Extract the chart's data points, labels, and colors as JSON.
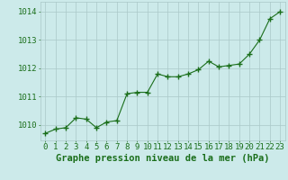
{
  "x": [
    0,
    1,
    2,
    3,
    4,
    5,
    6,
    7,
    8,
    9,
    10,
    11,
    12,
    13,
    14,
    15,
    16,
    17,
    18,
    19,
    20,
    21,
    22,
    23
  ],
  "y": [
    1009.7,
    1009.85,
    1009.9,
    1010.25,
    1010.2,
    1009.9,
    1010.1,
    1010.15,
    1011.1,
    1011.15,
    1011.15,
    1011.8,
    1011.7,
    1011.7,
    1011.8,
    1011.95,
    1012.25,
    1012.05,
    1012.1,
    1012.15,
    1012.5,
    1013.0,
    1013.75,
    1014.0
  ],
  "line_color": "#1a6e1a",
  "marker": "+",
  "marker_size": 4,
  "bg_color": "#cceaea",
  "grid_color": "#aac8c8",
  "xlabel": "Graphe pression niveau de la mer (hPa)",
  "xlabel_color": "#1a6e1a",
  "xlabel_fontsize": 7.5,
  "tick_color": "#1a6e1a",
  "tick_fontsize": 6.5,
  "ytick_labels": [
    "1010",
    "1011",
    "1012",
    "1013",
    "1014"
  ],
  "ylim": [
    1009.45,
    1014.35
  ],
  "xlim": [
    -0.5,
    23.5
  ],
  "yticks": [
    1010,
    1011,
    1012,
    1013,
    1014
  ]
}
